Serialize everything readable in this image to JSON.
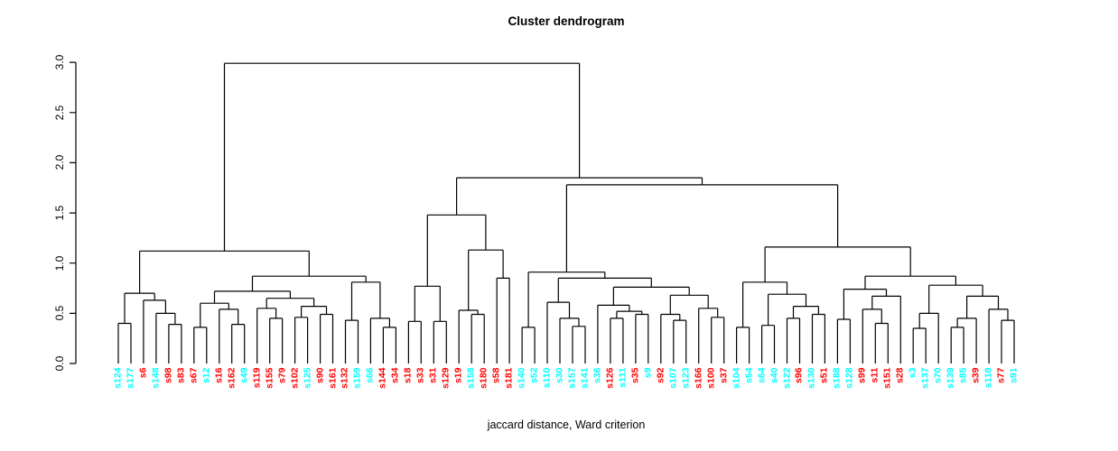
{
  "chart_data": {
    "type": "dendrogram",
    "title": "Cluster dendrogram",
    "xlabel": "jaccard distance, Ward criterion",
    "ylabel": "",
    "ylim": [
      0.0,
      3.0
    ],
    "yticks": [
      0.0,
      0.5,
      1.0,
      1.5,
      2.0,
      2.5,
      3.0
    ],
    "grid": false,
    "line_color": "#000000",
    "colors": {
      "c": "#00FFFF",
      "r": "#FF0000"
    },
    "leaves": [
      [
        "s124",
        "c"
      ],
      [
        "s177",
        "c"
      ],
      [
        "s6",
        "r"
      ],
      [
        "s148",
        "c"
      ],
      [
        "s98",
        "r"
      ],
      [
        "s83",
        "r"
      ],
      [
        "s67",
        "r"
      ],
      [
        "s12",
        "c"
      ],
      [
        "s16",
        "r"
      ],
      [
        "s162",
        "r"
      ],
      [
        "s49",
        "c"
      ],
      [
        "s119",
        "r"
      ],
      [
        "s155",
        "r"
      ],
      [
        "s79",
        "r"
      ],
      [
        "s102",
        "r"
      ],
      [
        "s125",
        "c"
      ],
      [
        "s90",
        "r"
      ],
      [
        "s161",
        "r"
      ],
      [
        "s132",
        "r"
      ],
      [
        "s159",
        "c"
      ],
      [
        "s66",
        "c"
      ],
      [
        "s144",
        "r"
      ],
      [
        "s34",
        "r"
      ],
      [
        "s18",
        "r"
      ],
      [
        "s33",
        "r"
      ],
      [
        "s31",
        "r"
      ],
      [
        "s129",
        "r"
      ],
      [
        "s19",
        "r"
      ],
      [
        "s158",
        "c"
      ],
      [
        "s180",
        "r"
      ],
      [
        "s58",
        "r"
      ],
      [
        "s181",
        "r"
      ],
      [
        "s140",
        "c"
      ],
      [
        "s52",
        "c"
      ],
      [
        "s110",
        "c"
      ],
      [
        "s30",
        "c"
      ],
      [
        "s157",
        "c"
      ],
      [
        "s141",
        "c"
      ],
      [
        "s36",
        "c"
      ],
      [
        "s126",
        "r"
      ],
      [
        "s111",
        "c"
      ],
      [
        "s35",
        "r"
      ],
      [
        "s9",
        "c"
      ],
      [
        "s92",
        "r"
      ],
      [
        "s107",
        "c"
      ],
      [
        "s123",
        "c"
      ],
      [
        "s166",
        "r"
      ],
      [
        "s100",
        "r"
      ],
      [
        "s37",
        "r"
      ],
      [
        "s104",
        "c"
      ],
      [
        "s54",
        "c"
      ],
      [
        "s64",
        "c"
      ],
      [
        "s40",
        "c"
      ],
      [
        "s122",
        "c"
      ],
      [
        "s96",
        "r"
      ],
      [
        "s130",
        "c"
      ],
      [
        "s51",
        "r"
      ],
      [
        "s188",
        "c"
      ],
      [
        "s128",
        "c"
      ],
      [
        "s99",
        "r"
      ],
      [
        "s11",
        "r"
      ],
      [
        "s151",
        "r"
      ],
      [
        "s28",
        "r"
      ],
      [
        "s3",
        "c"
      ],
      [
        "s137",
        "c"
      ],
      [
        "s70",
        "c"
      ],
      [
        "s139",
        "c"
      ],
      [
        "s85",
        "c"
      ],
      [
        "s39",
        "r"
      ],
      [
        "s118",
        "c"
      ],
      [
        "s77",
        "r"
      ],
      [
        "s91",
        "c"
      ]
    ],
    "tree": [
      2.99,
      [
        1.12,
        [
          0.7,
          [
            0.4,
            "s124",
            "s177"
          ],
          [
            0.63,
            "s6",
            [
              0.5,
              "s148",
              [
                0.39,
                "s98",
                "s83"
              ]
            ]
          ]
        ],
        [
          0.87,
          [
            0.72,
            [
              0.6,
              [
                0.36,
                "s67",
                "s12"
              ],
              [
                0.54,
                "s16",
                [
                  0.39,
                  "s162",
                  "s49"
                ]
              ]
            ],
            [
              0.65,
              [
                0.55,
                "s119",
                [
                  0.45,
                  "s155",
                  "s79"
                ]
              ],
              [
                0.57,
                [
                  0.46,
                  "s102",
                  "s125"
                ],
                [
                  0.49,
                  "s90",
                  "s161"
                ]
              ]
            ]
          ],
          [
            0.81,
            [
              0.43,
              "s132",
              "s159"
            ],
            [
              0.45,
              "s66",
              [
                0.36,
                "s144",
                "s34"
              ]
            ]
          ]
        ]
      ],
      [
        1.85,
        [
          1.48,
          [
            0.77,
            [
              0.42,
              "s18",
              "s33"
            ],
            [
              0.42,
              "s31",
              "s129"
            ]
          ],
          [
            1.13,
            [
              0.53,
              "s19",
              [
                0.49,
                "s158",
                "s180"
              ]
            ],
            [
              0.85,
              "s58",
              "s181"
            ]
          ]
        ],
        [
          1.78,
          [
            0.91,
            [
              0.36,
              "s140",
              "s52"
            ],
            [
              0.85,
              [
                0.61,
                "s110",
                [
                  0.45,
                  "s30",
                  [
                    0.37,
                    "s157",
                    "s141"
                  ]
                ]
              ],
              [
                0.76,
                [
                  0.58,
                  "s36",
                  [
                    0.52,
                    [
                      0.45,
                      "s126",
                      "s111"
                    ],
                    [
                      0.49,
                      "s35",
                      "s9"
                    ]
                  ]
                ],
                [
                  0.68,
                  [
                    0.49,
                    "s92",
                    [
                      0.43,
                      "s107",
                      "s123"
                    ]
                  ],
                  [
                    0.55,
                    "s166",
                    [
                      0.46,
                      "s100",
                      "s37"
                    ]
                  ]
                ]
              ]
            ]
          ],
          [
            1.16,
            [
              0.81,
              [
                0.36,
                "s104",
                "s54"
              ],
              [
                0.69,
                [
                  0.38,
                  "s64",
                  "s40"
                ],
                [
                  0.57,
                  [
                    0.45,
                    "s122",
                    "s96"
                  ],
                  [
                    0.49,
                    "s130",
                    "s51"
                  ]
                ]
              ]
            ],
            [
              0.87,
              [
                0.74,
                [
                  0.44,
                  "s188",
                  "s128"
                ],
                [
                  0.67,
                  [
                    0.54,
                    "s99",
                    [
                      0.4,
                      "s11",
                      "s151"
                    ]
                  ],
                  "s28"
                ]
              ],
              [
                0.78,
                [
                  0.5,
                  [
                    0.35,
                    "s3",
                    "s137"
                  ],
                  "s70"
                ],
                [
                  0.67,
                  [
                    0.45,
                    [
                      0.36,
                      "s139",
                      "s85"
                    ],
                    "s39"
                  ],
                  [
                    0.54,
                    "s118",
                    [
                      0.43,
                      "s77",
                      "s91"
                    ]
                  ]
                ]
              ]
            ]
          ]
        ]
      ]
    ]
  }
}
